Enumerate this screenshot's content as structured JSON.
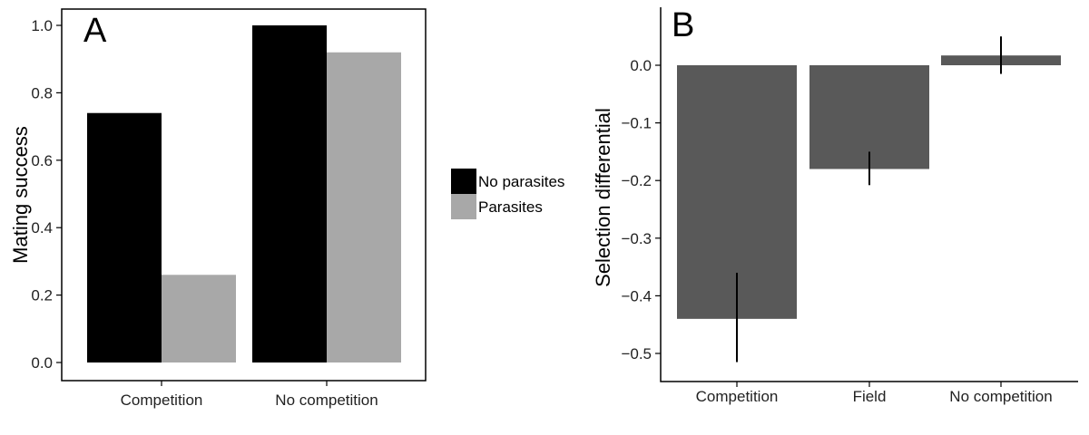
{
  "chart_data": [
    {
      "type": "bar",
      "panel_label": "A",
      "categories": [
        "Competition",
        "No competition"
      ],
      "series": [
        {
          "name": "No parasites",
          "color": "#000000",
          "values": [
            0.74,
            1.0
          ]
        },
        {
          "name": "Parasites",
          "color": "#a8a8a8",
          "values": [
            0.26,
            0.92
          ]
        }
      ],
      "xlabel": "",
      "ylabel": "Mating success",
      "ylim": [
        0,
        1.0
      ],
      "yticks": [
        0.0,
        0.2,
        0.4,
        0.6,
        0.8,
        1.0
      ],
      "ytick_labels": [
        "0.0",
        "0.2",
        "0.4",
        "0.6",
        "0.8",
        "1.0"
      ],
      "grid": false,
      "legend_position": "right"
    },
    {
      "type": "bar",
      "panel_label": "B",
      "categories": [
        "Competition",
        "Field",
        "No competition"
      ],
      "values": [
        -0.44,
        -0.18,
        0.017
      ],
      "error_bars": [
        [
          -0.515,
          -0.36
        ],
        [
          -0.208,
          -0.15
        ],
        [
          -0.015,
          0.05
        ]
      ],
      "bar_color": "#595959",
      "xlabel": "",
      "ylabel": "Selection differential",
      "ylim": [
        -0.53,
        0.1
      ],
      "yticks": [
        0.0,
        -0.1,
        -0.2,
        -0.3,
        -0.4,
        -0.5
      ],
      "ytick_labels": [
        "0.0",
        "−0.1",
        "−0.2",
        "−0.3",
        "−0.4",
        "−0.5"
      ],
      "grid": false
    }
  ]
}
